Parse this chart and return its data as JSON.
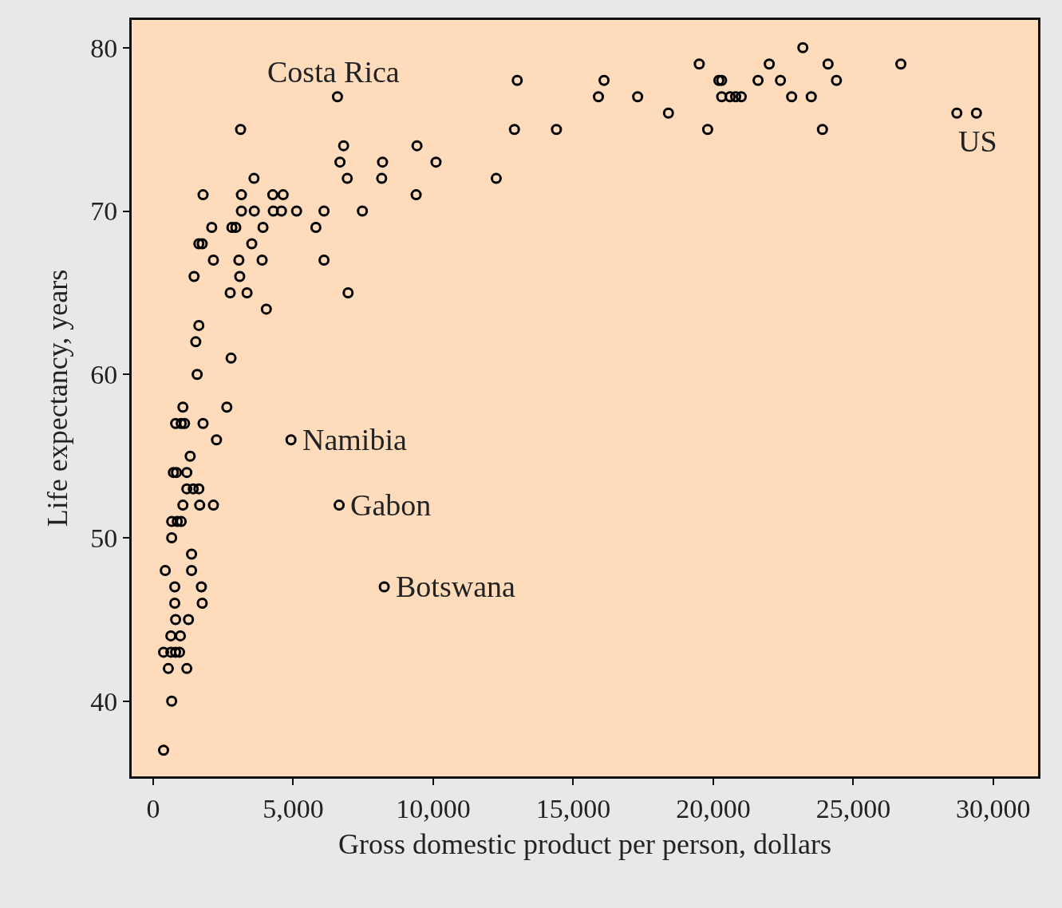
{
  "chart_data": {
    "type": "scatter",
    "xlabel": "Gross domestic product per person, dollars",
    "ylabel": "Life expectancy, years",
    "x": [
      6580,
      3120,
      13000,
      12900,
      14400,
      15900,
      16100,
      17300,
      18400,
      19500,
      19800,
      20200,
      20300,
      20300,
      20600,
      20800,
      21000,
      21600,
      22000,
      22400,
      22800,
      23200,
      23500,
      23900,
      24100,
      24400,
      26700,
      28700,
      29400,
      3600,
      6800,
      6670,
      6930,
      8190,
      8160,
      9420,
      10100,
      9390,
      12250,
      7470,
      6100,
      5810,
      6100,
      6960,
      1780,
      3150,
      4270,
      4640,
      3150,
      3610,
      4290,
      4580,
      5120,
      2090,
      2810,
      2950,
      3920,
      1630,
      1750,
      3520,
      2150,
      3060,
      3890,
      1460,
      3090,
      2750,
      3350,
      4040,
      1630,
      1520,
      2780,
      1570,
      1060,
      2630,
      800,
      1000,
      1120,
      1780,
      2260,
      4920,
      1320,
      720,
      830,
      1200,
      1200,
      1430,
      1630,
      1060,
      1660,
      2150,
      6640,
      660,
      860,
      1000,
      660,
      1370,
      430,
      1370,
      770,
      1720,
      8250,
      770,
      1750,
      800,
      1260,
      630,
      970,
      370,
      630,
      800,
      940,
      540,
      1200,
      660,
      370
    ],
    "values": [
      77,
      75,
      78,
      75,
      75,
      77,
      78,
      77,
      76,
      79,
      75,
      78,
      78,
      77,
      77,
      77,
      77,
      78,
      79,
      78,
      77,
      80,
      77,
      75,
      79,
      78,
      79,
      76,
      76,
      72,
      74,
      73,
      72,
      73,
      72,
      74,
      73,
      71,
      72,
      70,
      70,
      69,
      67,
      65,
      71,
      71,
      71,
      71,
      70,
      70,
      70,
      70,
      70,
      69,
      69,
      69,
      69,
      68,
      68,
      68,
      67,
      67,
      67,
      66,
      66,
      65,
      65,
      64,
      63,
      62,
      61,
      60,
      58,
      58,
      57,
      57,
      57,
      57,
      56,
      56,
      55,
      54,
      54,
      54,
      53,
      53,
      53,
      52,
      52,
      52,
      52,
      51,
      51,
      51,
      50,
      49,
      48,
      48,
      47,
      47,
      47,
      46,
      46,
      45,
      45,
      44,
      44,
      43,
      43,
      43,
      43,
      42,
      42,
      40,
      37
    ],
    "color": "#000000",
    "marker": "circle",
    "grid": false,
    "legend": false,
    "xlim": [
      -770,
      31600
    ],
    "ylim": [
      35.4,
      81.7
    ],
    "xticks": [
      0,
      {
        "value": 5000,
        "label": "5,000"
      },
      {
        "value": 10000,
        "label": "10,000"
      },
      {
        "value": 15000,
        "label": "15,000"
      },
      {
        "value": 20000,
        "label": "20,000"
      },
      {
        "value": 25000,
        "label": "25,000"
      },
      {
        "value": 30000,
        "label": "30,000"
      }
    ],
    "yticks": [
      40,
      50,
      60,
      70,
      80
    ],
    "annotations": [
      {
        "text": "Costa Rica",
        "x": 6580,
        "y": 77
      },
      {
        "text": "US",
        "x": 29400,
        "y": 76
      },
      {
        "text": "Namibia",
        "x": 4920,
        "y": 56
      },
      {
        "text": "Gabon",
        "x": 6640,
        "y": 52
      },
      {
        "text": "Botswana",
        "x": 8250,
        "y": 47
      }
    ]
  }
}
